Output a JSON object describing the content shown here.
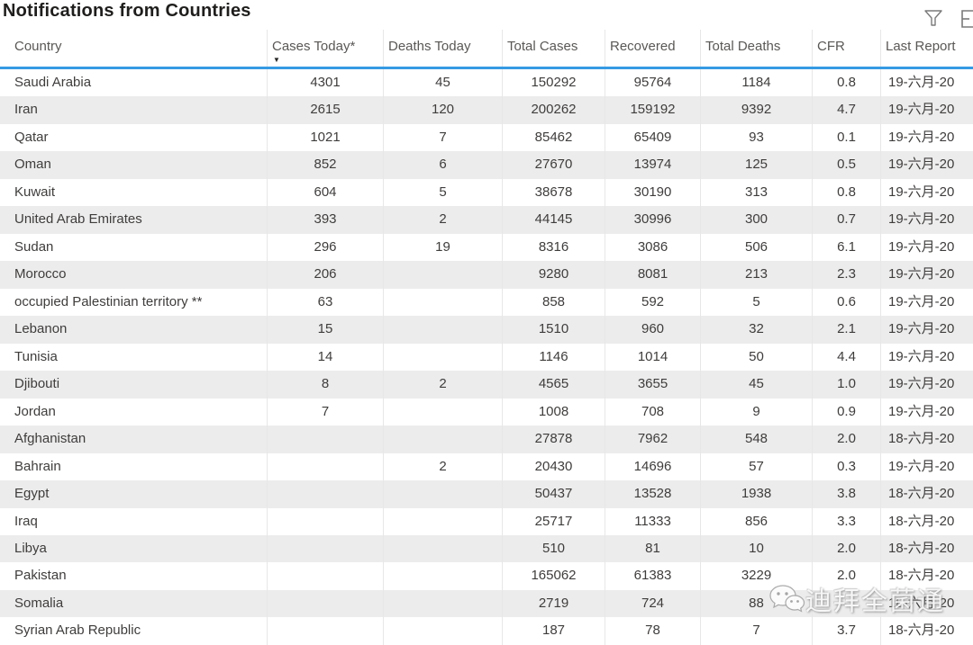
{
  "title": "Notifications from Countries",
  "header_icons": {
    "filter": "filter-funnel",
    "focus": "focus-mode"
  },
  "colors": {
    "accent_blue": "#359ae3",
    "row_stripe": "#ececec",
    "header_text": "#5a5856",
    "body_text": "#3f3d3c",
    "icon_gray": "#7a7a7a"
  },
  "table": {
    "columns": [
      {
        "label": "Country",
        "align": "left",
        "sorted": false
      },
      {
        "label": "Cases Today*",
        "align": "center",
        "sorted": true
      },
      {
        "label": "Deaths Today",
        "align": "center",
        "sorted": false
      },
      {
        "label": "Total Cases",
        "align": "center",
        "sorted": false
      },
      {
        "label": "Recovered",
        "align": "center",
        "sorted": false
      },
      {
        "label": "Total Deaths",
        "align": "center",
        "sorted": false
      },
      {
        "label": "CFR",
        "align": "center",
        "sorted": false
      },
      {
        "label": "Last Report",
        "align": "date",
        "sorted": false
      }
    ],
    "rows": [
      [
        "Saudi Arabia",
        "4301",
        "45",
        "150292",
        "95764",
        "1184",
        "0.8",
        "19-六月-20"
      ],
      [
        "Iran",
        "2615",
        "120",
        "200262",
        "159192",
        "9392",
        "4.7",
        "19-六月-20"
      ],
      [
        "Qatar",
        "1021",
        "7",
        "85462",
        "65409",
        "93",
        "0.1",
        "19-六月-20"
      ],
      [
        "Oman",
        "852",
        "6",
        "27670",
        "13974",
        "125",
        "0.5",
        "19-六月-20"
      ],
      [
        "Kuwait",
        "604",
        "5",
        "38678",
        "30190",
        "313",
        "0.8",
        "19-六月-20"
      ],
      [
        "United Arab Emirates",
        "393",
        "2",
        "44145",
        "30996",
        "300",
        "0.7",
        "19-六月-20"
      ],
      [
        "Sudan",
        "296",
        "19",
        "8316",
        "3086",
        "506",
        "6.1",
        "19-六月-20"
      ],
      [
        "Morocco",
        "206",
        "",
        "9280",
        "8081",
        "213",
        "2.3",
        "19-六月-20"
      ],
      [
        "occupied Palestinian territory **",
        "63",
        "",
        "858",
        "592",
        "5",
        "0.6",
        "19-六月-20"
      ],
      [
        "Lebanon",
        "15",
        "",
        "1510",
        "960",
        "32",
        "2.1",
        "19-六月-20"
      ],
      [
        "Tunisia",
        "14",
        "",
        "1146",
        "1014",
        "50",
        "4.4",
        "19-六月-20"
      ],
      [
        "Djibouti",
        "8",
        "2",
        "4565",
        "3655",
        "45",
        "1.0",
        "19-六月-20"
      ],
      [
        "Jordan",
        "7",
        "",
        "1008",
        "708",
        "9",
        "0.9",
        "19-六月-20"
      ],
      [
        "Afghanistan",
        "",
        "",
        "27878",
        "7962",
        "548",
        "2.0",
        "18-六月-20"
      ],
      [
        "Bahrain",
        "",
        "2",
        "20430",
        "14696",
        "57",
        "0.3",
        "19-六月-20"
      ],
      [
        "Egypt",
        "",
        "",
        "50437",
        "13528",
        "1938",
        "3.8",
        "18-六月-20"
      ],
      [
        "Iraq",
        "",
        "",
        "25717",
        "11333",
        "856",
        "3.3",
        "18-六月-20"
      ],
      [
        "Libya",
        "",
        "",
        "510",
        "81",
        "10",
        "2.0",
        "18-六月-20"
      ],
      [
        "Pakistan",
        "",
        "",
        "165062",
        "61383",
        "3229",
        "2.0",
        "18-六月-20"
      ],
      [
        "Somalia",
        "",
        "",
        "2719",
        "724",
        "88",
        "",
        "18-六月-20"
      ],
      [
        "Syrian Arab Republic",
        "",
        "",
        "187",
        "78",
        "7",
        "3.7",
        "18-六月-20"
      ]
    ]
  },
  "watermark": {
    "text": "迪拜全菌通",
    "icon": "wechat-logo"
  }
}
